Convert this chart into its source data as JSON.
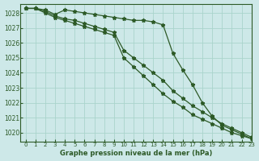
{
  "title": "Graphe pression niveau de la mer (hPa)",
  "background_color": "#cde8e8",
  "grid_color": "#aad4cc",
  "line_color": "#2d5a27",
  "xlim": [
    -0.5,
    23
  ],
  "ylim": [
    1019.4,
    1028.6
  ],
  "yticks": [
    1020,
    1021,
    1022,
    1023,
    1024,
    1025,
    1026,
    1027,
    1028
  ],
  "xticks": [
    0,
    1,
    2,
    3,
    4,
    5,
    6,
    7,
    8,
    9,
    10,
    11,
    12,
    13,
    14,
    15,
    16,
    17,
    18,
    19,
    20,
    21,
    22,
    23
  ],
  "series": [
    [
      1028.3,
      1028.3,
      1028.2,
      1027.9,
      1028.2,
      1028.1,
      1028.0,
      1027.9,
      1027.8,
      1027.7,
      1027.6,
      1027.5,
      1027.5,
      1027.4,
      1027.2,
      1025.3,
      1024.2,
      1023.2,
      1022.0,
      1021.1,
      1020.5,
      1020.2,
      1019.9,
      1019.6
    ],
    [
      1028.3,
      1028.3,
      1028.1,
      1027.8,
      1027.6,
      1027.5,
      1027.3,
      1027.1,
      1026.9,
      1026.7,
      1025.5,
      1025.0,
      1024.5,
      1024.0,
      1023.5,
      1022.8,
      1022.3,
      1021.8,
      1021.4,
      1021.0,
      1020.6,
      1020.3,
      1020.0,
      1019.7
    ],
    [
      1028.3,
      1028.3,
      1028.0,
      1027.7,
      1027.5,
      1027.3,
      1027.1,
      1026.9,
      1026.7,
      1026.5,
      1025.0,
      1024.4,
      1023.8,
      1023.2,
      1022.6,
      1022.1,
      1021.7,
      1021.2,
      1020.9,
      1020.6,
      1020.3,
      1020.0,
      1019.8,
      1019.6
    ]
  ]
}
